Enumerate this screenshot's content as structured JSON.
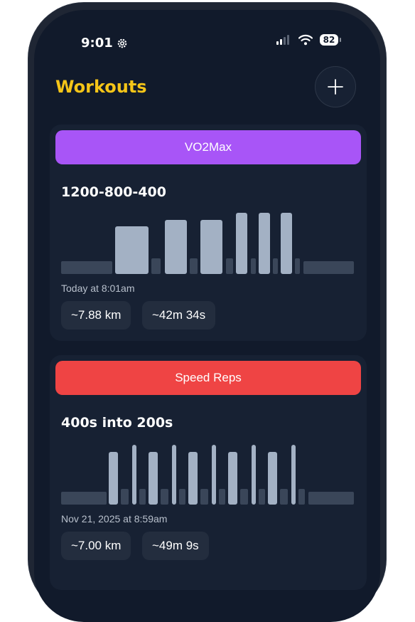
{
  "status_bar": {
    "time": "9:01",
    "battery": "82"
  },
  "header": {
    "title": "Workouts"
  },
  "colors": {
    "title": "#f5c518",
    "vo2max": "#a855f7",
    "speed_reps": "#ef4444",
    "bar_hi": "#a3b1c4",
    "bar_lo": "#3a4659"
  },
  "workouts": [
    {
      "category": "VO2Max",
      "name": "1200-800-400",
      "date": "Today at 8:01am",
      "distance": "~7.88 km",
      "duration": "~42m 34s"
    },
    {
      "category": "Speed Reps",
      "name": "400s into 200s",
      "date": "Nov 21, 2025 at 8:59am",
      "distance": "~7.00 km",
      "duration": "~49m 9s"
    }
  ]
}
